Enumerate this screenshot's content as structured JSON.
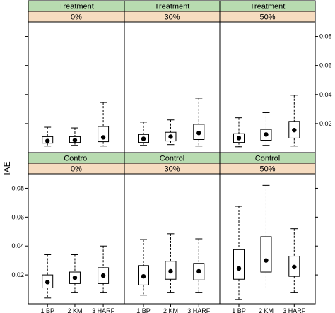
{
  "chart_data": {
    "type": "boxplot",
    "ylabel": "IAE",
    "categories": [
      "1 BP",
      "2 KM",
      "3 HARF"
    ],
    "strip_labels": {
      "group": [
        "Treatment",
        "Control"
      ],
      "level": [
        "0%",
        "30%",
        "50%"
      ]
    },
    "ylim": [
      0,
      0.09
    ],
    "yticks": [
      0.02,
      0.04,
      0.06,
      0.08
    ],
    "ytick_labels": [
      "0.02",
      "0.04",
      "0.06",
      "0.08"
    ],
    "colors": {
      "group_strip": "#b8dbb0",
      "level_strip": "#f6dcc0",
      "box": "#000000"
    },
    "panels": [
      {
        "group": "Treatment",
        "level": "0%",
        "boxes": [
          {
            "category": "1 BP",
            "min": 0.0045,
            "q1": 0.0065,
            "median": 0.008,
            "q3": 0.011,
            "max": 0.0175
          },
          {
            "category": "2 KM",
            "min": 0.005,
            "q1": 0.007,
            "median": 0.0085,
            "q3": 0.011,
            "max": 0.017
          },
          {
            "category": "3 HARF",
            "min": 0.0045,
            "q1": 0.0075,
            "median": 0.0105,
            "q3": 0.018,
            "max": 0.0345
          }
        ]
      },
      {
        "group": "Treatment",
        "level": "30%",
        "boxes": [
          {
            "category": "1 BP",
            "min": 0.005,
            "q1": 0.007,
            "median": 0.0095,
            "q3": 0.0125,
            "max": 0.021
          },
          {
            "category": "2 KM",
            "min": 0.0055,
            "q1": 0.008,
            "median": 0.011,
            "q3": 0.014,
            "max": 0.0225
          },
          {
            "category": "3 HARF",
            "min": 0.0045,
            "q1": 0.009,
            "median": 0.0135,
            "q3": 0.0195,
            "max": 0.0375
          }
        ]
      },
      {
        "group": "Treatment",
        "level": "50%",
        "boxes": [
          {
            "category": "1 BP",
            "min": 0.004,
            "q1": 0.007,
            "median": 0.01,
            "q3": 0.013,
            "max": 0.024
          },
          {
            "category": "2 KM",
            "min": 0.005,
            "q1": 0.0085,
            "median": 0.0125,
            "q3": 0.016,
            "max": 0.0275
          },
          {
            "category": "3 HARF",
            "min": 0.0045,
            "q1": 0.01,
            "median": 0.0155,
            "q3": 0.0215,
            "max": 0.0395
          }
        ]
      },
      {
        "group": "Control",
        "level": "0%",
        "boxes": [
          {
            "category": "1 BP",
            "min": 0.004,
            "q1": 0.011,
            "median": 0.015,
            "q3": 0.02,
            "max": 0.034
          },
          {
            "category": "2 KM",
            "min": 0.008,
            "q1": 0.014,
            "median": 0.018,
            "q3": 0.022,
            "max": 0.034
          },
          {
            "category": "3 HARF",
            "min": 0.008,
            "q1": 0.014,
            "median": 0.0195,
            "q3": 0.025,
            "max": 0.04
          }
        ]
      },
      {
        "group": "Control",
        "level": "30%",
        "boxes": [
          {
            "category": "1 BP",
            "min": 0.006,
            "q1": 0.013,
            "median": 0.019,
            "q3": 0.0265,
            "max": 0.0445
          },
          {
            "category": "2 KM",
            "min": 0.008,
            "q1": 0.017,
            "median": 0.0225,
            "q3": 0.0295,
            "max": 0.0485
          },
          {
            "category": "3 HARF",
            "min": 0.008,
            "q1": 0.0165,
            "median": 0.0225,
            "q3": 0.028,
            "max": 0.045
          }
        ]
      },
      {
        "group": "Control",
        "level": "50%",
        "boxes": [
          {
            "category": "1 BP",
            "min": 0.003,
            "q1": 0.017,
            "median": 0.0245,
            "q3": 0.0375,
            "max": 0.0675
          },
          {
            "category": "2 KM",
            "min": 0.011,
            "q1": 0.022,
            "median": 0.03,
            "q3": 0.0465,
            "max": 0.082
          },
          {
            "category": "3 HARF",
            "min": 0.008,
            "q1": 0.019,
            "median": 0.0255,
            "q3": 0.033,
            "max": 0.052
          }
        ]
      }
    ]
  }
}
